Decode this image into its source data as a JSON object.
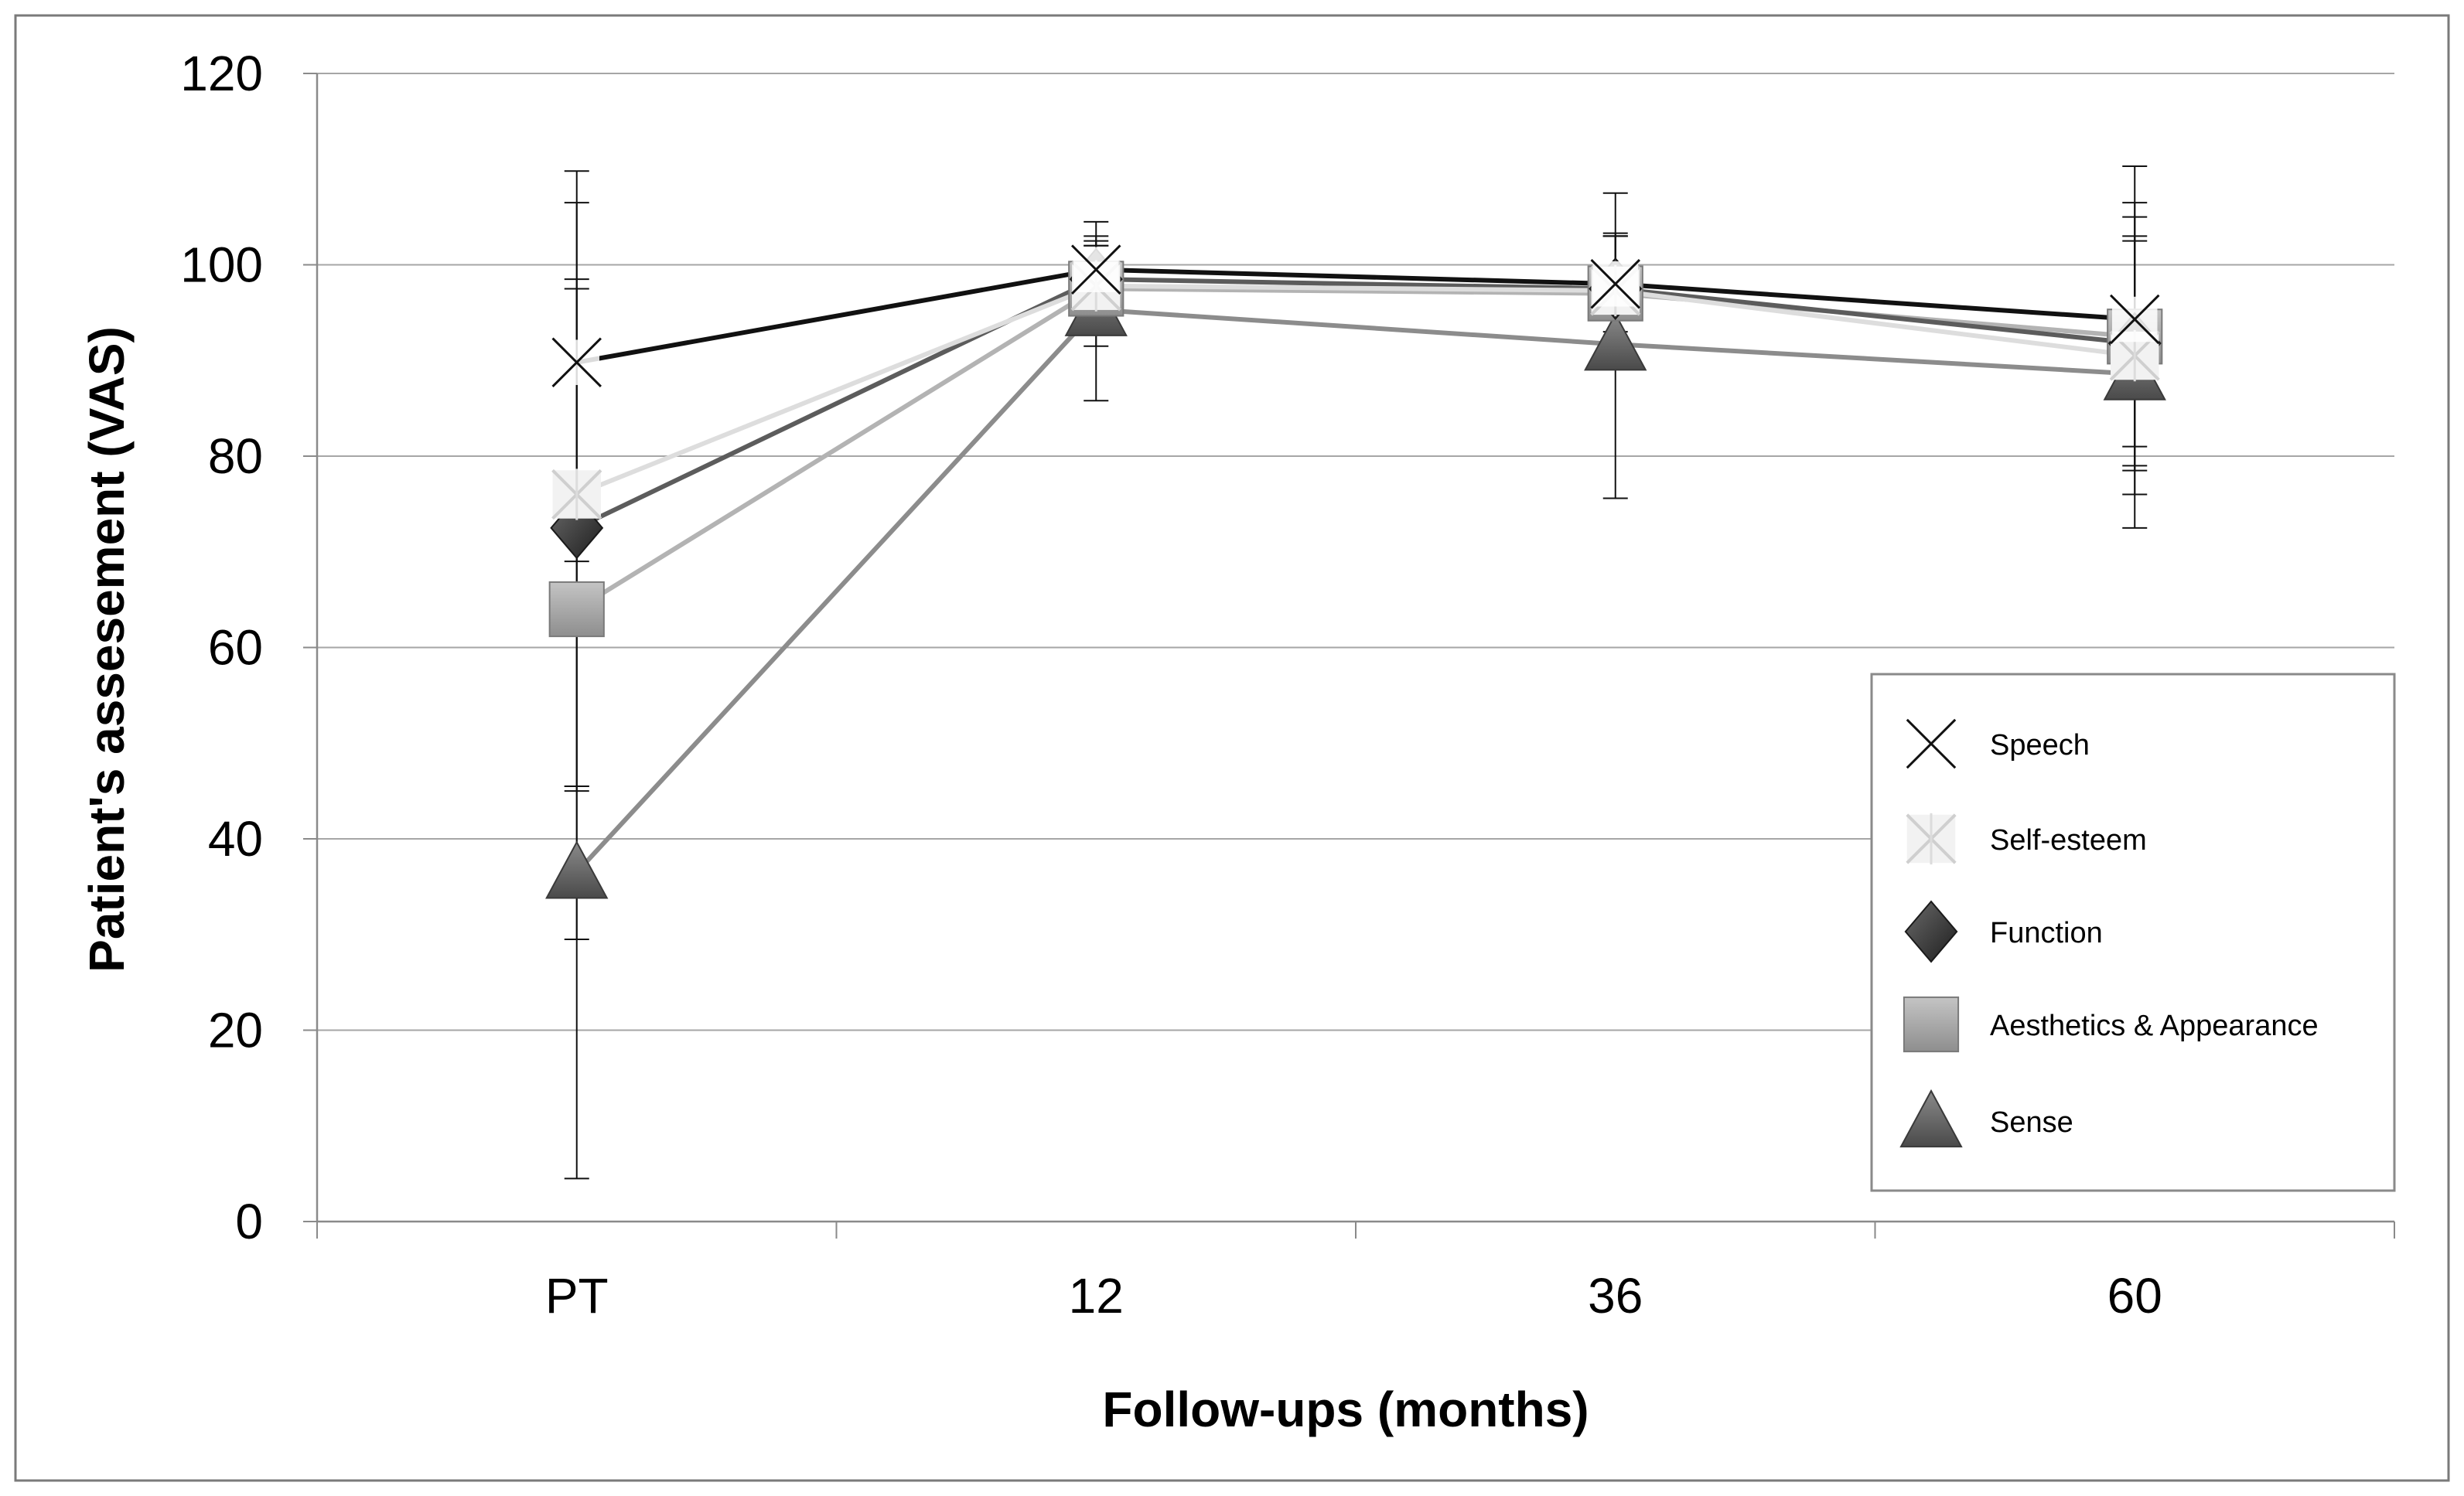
{
  "chart_data": {
    "type": "line",
    "title": "",
    "xlabel": "Follow-ups (months)",
    "ylabel": "Patient's assesement (VAS)",
    "categories": [
      "PT",
      "12",
      "36",
      "60"
    ],
    "ylim": [
      0,
      120
    ],
    "yticks": [
      0,
      20,
      40,
      60,
      80,
      100,
      120
    ],
    "grid": true,
    "legend_position": "right",
    "series": [
      {
        "name": "Sense",
        "marker": "triangle",
        "line_color": "#8c8c8c",
        "marker_color": "#6e6e6e",
        "values": [
          36.5,
          95.3,
          91.7,
          88.6
        ],
        "error_low": [
          4.5,
          85.8,
          75.6,
          72.5
        ],
        "error_high": [
          45.5,
          102.0,
          103.0,
          102.5
        ]
      },
      {
        "name": "Aesthetics & Appearance",
        "marker": "square",
        "line_color": "#b3b3b3",
        "marker_color": "#9a9a9a",
        "values": [
          64.0,
          97.5,
          97.0,
          92.5
        ],
        "error_low": [
          45.0,
          91.5,
          91.0,
          79.0
        ],
        "error_high": [
          98.5,
          103.0,
          103.3,
          106.5
        ]
      },
      {
        "name": "Function",
        "marker": "diamond",
        "line_color": "#5c5c5c",
        "marker_color": "#3c3c3c",
        "values": [
          72.5,
          98.5,
          97.5,
          91.8
        ],
        "error_low": [
          29.5,
          94.0,
          93.0,
          78.5
        ],
        "error_high": [
          97.5,
          102.5,
          103.0,
          105.0
        ]
      },
      {
        "name": "Self-esteem",
        "marker": "star",
        "line_color": "#dddddd",
        "marker_color": "#d0d0d0",
        "values": [
          76.0,
          97.8,
          97.3,
          90.5
        ],
        "error_low": [
          45.5,
          95.0,
          92.0,
          76.0
        ],
        "error_high": [
          106.5,
          102.0,
          103.0,
          103.0
        ]
      },
      {
        "name": "Speech",
        "marker": "x",
        "line_color": "#111111",
        "marker_color": "#111111",
        "values": [
          89.8,
          99.5,
          98.0,
          94.3
        ],
        "error_low": [
          69.0,
          95.5,
          92.5,
          81.0
        ],
        "error_high": [
          109.8,
          104.5,
          107.5,
          110.3
        ]
      }
    ]
  },
  "legend_order": [
    "Speech",
    "Self-esteem",
    "Function",
    "Aesthetics & Appearance",
    "Sense"
  ]
}
